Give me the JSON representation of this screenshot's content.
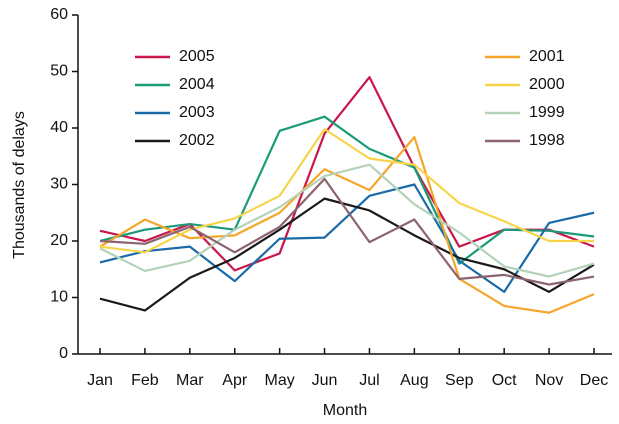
{
  "chart_data": {
    "type": "line",
    "x_label": "Month",
    "y_label": "Thousands of delays",
    "categories": [
      "Jan",
      "Feb",
      "Mar",
      "Apr",
      "May",
      "Jun",
      "Jul",
      "Aug",
      "Sep",
      "Oct",
      "Nov",
      "Dec"
    ],
    "ylim": [
      0,
      60
    ],
    "yticks": [
      0,
      10,
      20,
      30,
      40,
      50,
      60
    ],
    "series": [
      {
        "name": "2005",
        "color": "#c8174a",
        "values": [
          21.8,
          20,
          23,
          14.8,
          17.8,
          39,
          49,
          33,
          19,
          22,
          22,
          19
        ]
      },
      {
        "name": "2004",
        "color": "#1a9a78",
        "values": [
          20,
          22,
          23,
          22,
          39.5,
          42,
          36.3,
          33,
          16,
          22,
          21.8,
          20.8
        ]
      },
      {
        "name": "2003",
        "color": "#1a6aa8",
        "values": [
          16.2,
          18.2,
          19,
          12.9,
          20.4,
          20.6,
          28,
          30,
          16.5,
          11,
          23.2,
          25
        ]
      },
      {
        "name": "2002",
        "color": "#1a1a1a",
        "values": [
          9.8,
          7.7,
          13.5,
          17,
          22,
          27.5,
          25.4,
          21,
          17,
          15,
          11,
          15.8
        ]
      },
      {
        "name": "2001",
        "color": "#f5a52a",
        "values": [
          19,
          23.8,
          20.5,
          21,
          25,
          32.7,
          29,
          38.4,
          13.3,
          8.5,
          7.3,
          10.6
        ]
      },
      {
        "name": "2000",
        "color": "#f8d448",
        "values": [
          19,
          18,
          22,
          24,
          28,
          39.8,
          34.6,
          33.5,
          26.7,
          23.5,
          20,
          20
        ]
      },
      {
        "name": "1999",
        "color": "#b4d2b8",
        "values": [
          18.7,
          14.7,
          16.5,
          22,
          26,
          31.5,
          33.5,
          26.5,
          21.5,
          15.5,
          13.7,
          16
        ]
      },
      {
        "name": "1998",
        "color": "#8c6470",
        "values": [
          20,
          19.5,
          22.5,
          18,
          22.5,
          31,
          19.8,
          23.8,
          13.3,
          14,
          12.3,
          13.7
        ]
      }
    ]
  }
}
